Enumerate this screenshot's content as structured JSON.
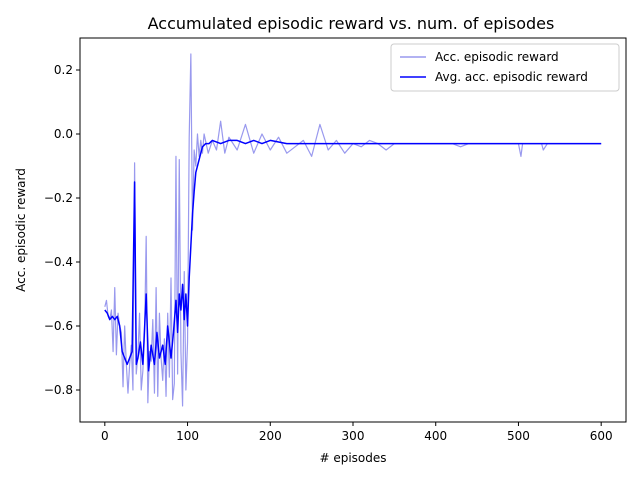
{
  "chart_data": {
    "type": "line",
    "title": "Accumulated episodic reward vs. num. of episodes",
    "xlabel": "# episodes",
    "ylabel": "Acc. episodic reward",
    "xlim": [
      -30,
      630
    ],
    "ylim": [
      -0.9,
      0.3
    ],
    "xticks": [
      0,
      100,
      200,
      300,
      400,
      500,
      600
    ],
    "yticks": [
      -0.8,
      -0.6,
      -0.4,
      -0.2,
      0.0,
      0.2
    ],
    "xtick_labels": [
      "0",
      "100",
      "200",
      "300",
      "400",
      "500",
      "600"
    ],
    "ytick_labels": [
      "−0.8",
      "−0.6",
      "−0.4",
      "−0.2",
      "0.0",
      "0.2"
    ],
    "grid": false,
    "legend_position": "top-right",
    "colors": {
      "raw": "#9999ee",
      "avg": "#0000ff",
      "axis": "#000000"
    },
    "series": [
      {
        "name": "Acc. episodic reward",
        "style": "light",
        "x": [
          0,
          2,
          4,
          6,
          8,
          10,
          12,
          14,
          16,
          18,
          20,
          22,
          24,
          26,
          28,
          30,
          32,
          34,
          36,
          38,
          40,
          42,
          44,
          46,
          48,
          50,
          52,
          54,
          56,
          58,
          60,
          62,
          64,
          66,
          68,
          70,
          72,
          74,
          76,
          78,
          80,
          82,
          84,
          86,
          88,
          90,
          92,
          94,
          96,
          98,
          100,
          102,
          104,
          106,
          108,
          110,
          112,
          114,
          116,
          118,
          120,
          125,
          130,
          135,
          140,
          145,
          150,
          160,
          170,
          180,
          190,
          200,
          210,
          220,
          230,
          240,
          250,
          260,
          270,
          280,
          290,
          300,
          310,
          320,
          330,
          340,
          350,
          360,
          370,
          380,
          400,
          420,
          430,
          440,
          460,
          480,
          500,
          503,
          505,
          510,
          520,
          528,
          530,
          535,
          540,
          560,
          580,
          600
        ],
        "y": [
          -0.54,
          -0.52,
          -0.57,
          -0.58,
          -0.55,
          -0.68,
          -0.48,
          -0.69,
          -0.56,
          -0.6,
          -0.62,
          -0.79,
          -0.6,
          -0.72,
          -0.81,
          -0.72,
          -0.66,
          -0.8,
          -0.09,
          -0.75,
          -0.69,
          -0.56,
          -0.8,
          -0.74,
          -0.63,
          -0.32,
          -0.84,
          -0.68,
          -0.71,
          -0.58,
          -0.81,
          -0.48,
          -0.82,
          -0.56,
          -0.7,
          -0.77,
          -0.64,
          -0.82,
          -0.56,
          -0.76,
          -0.45,
          -0.83,
          -0.78,
          -0.07,
          -0.75,
          -0.08,
          -0.68,
          -0.85,
          -0.43,
          -0.8,
          -0.65,
          -0.01,
          0.25,
          -0.3,
          -0.05,
          -0.1,
          0.0,
          -0.07,
          -0.02,
          -0.06,
          0.0,
          -0.06,
          -0.02,
          -0.05,
          0.04,
          -0.06,
          -0.01,
          -0.05,
          0.03,
          -0.06,
          0.0,
          -0.05,
          -0.01,
          -0.06,
          -0.04,
          -0.02,
          -0.07,
          0.03,
          -0.05,
          -0.02,
          -0.06,
          -0.03,
          -0.04,
          -0.02,
          -0.03,
          -0.05,
          -0.03,
          -0.03,
          -0.03,
          -0.03,
          -0.03,
          -0.03,
          -0.04,
          -0.03,
          -0.03,
          -0.03,
          -0.03,
          -0.07,
          -0.03,
          -0.03,
          -0.03,
          -0.03,
          -0.05,
          -0.03,
          -0.03,
          -0.03,
          -0.03,
          -0.03
        ]
      },
      {
        "name": "Avg. acc. episodic reward",
        "style": "dark",
        "x": [
          0,
          3,
          6,
          9,
          12,
          15,
          18,
          21,
          24,
          27,
          30,
          33,
          36,
          38,
          40,
          43,
          46,
          50,
          53,
          56,
          60,
          63,
          66,
          70,
          73,
          76,
          80,
          83,
          86,
          88,
          90,
          92,
          94,
          96,
          98,
          100,
          102,
          104,
          106,
          108,
          110,
          114,
          118,
          122,
          126,
          130,
          140,
          150,
          160,
          170,
          180,
          190,
          200,
          220,
          240,
          260,
          280,
          300,
          320,
          340,
          360,
          380,
          400,
          450,
          500,
          550,
          600
        ],
        "y": [
          -0.55,
          -0.56,
          -0.58,
          -0.57,
          -0.58,
          -0.57,
          -0.6,
          -0.68,
          -0.7,
          -0.72,
          -0.7,
          -0.68,
          -0.15,
          -0.72,
          -0.7,
          -0.65,
          -0.72,
          -0.5,
          -0.74,
          -0.66,
          -0.72,
          -0.62,
          -0.7,
          -0.66,
          -0.72,
          -0.6,
          -0.7,
          -0.62,
          -0.52,
          -0.62,
          -0.5,
          -0.55,
          -0.47,
          -0.58,
          -0.5,
          -0.6,
          -0.45,
          -0.35,
          -0.25,
          -0.18,
          -0.12,
          -0.08,
          -0.04,
          -0.03,
          -0.03,
          -0.02,
          -0.03,
          -0.02,
          -0.02,
          -0.03,
          -0.02,
          -0.03,
          -0.02,
          -0.03,
          -0.03,
          -0.03,
          -0.03,
          -0.03,
          -0.03,
          -0.03,
          -0.03,
          -0.03,
          -0.03,
          -0.03,
          -0.03,
          -0.03,
          -0.03
        ]
      }
    ]
  }
}
